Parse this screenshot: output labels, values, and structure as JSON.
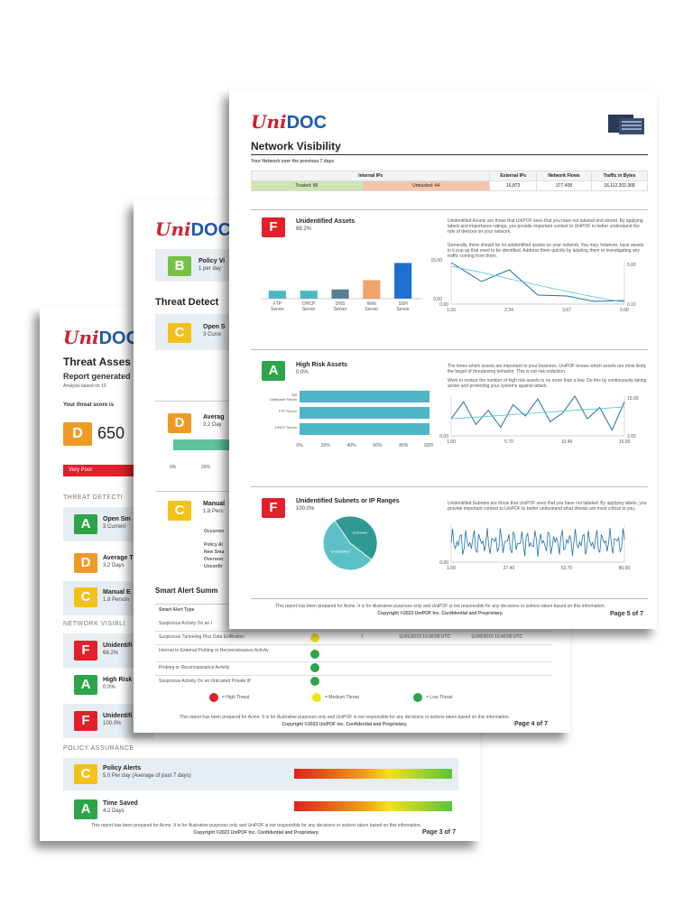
{
  "brand": {
    "logo_uni": "Uni",
    "logo_doc": "DOC"
  },
  "page3": {
    "title": "Threat Asses",
    "subtitle": "Report generated",
    "analysis": "Analysis based on 10",
    "score_label": "Your threat score is",
    "score_grade": "D",
    "score_value": "650",
    "score_rating": "Very Poor",
    "threat_section": "THREAT DETECTI",
    "threat_items": [
      {
        "grade": "A",
        "title": "Open Sm",
        "sub": "3 Current"
      },
      {
        "grade": "D",
        "title": "Average T",
        "sub": "3.2 Days"
      },
      {
        "grade": "C",
        "title": "Manual E",
        "sub": "1.8 Person"
      }
    ],
    "network_section": "NETWORK VISIBLI",
    "network_items": [
      {
        "grade": "F",
        "title": "Unidentifi",
        "sub": "68.2%"
      },
      {
        "grade": "A",
        "title": "High Risk",
        "sub": "0.0%"
      },
      {
        "grade": "F",
        "title": "Unidentifi",
        "sub": "100.0%"
      }
    ],
    "policy_section": "POLICY ASSURANCE",
    "policy_items": [
      {
        "grade": "C",
        "title": "Policy Alerts",
        "sub": "5.0 Per day (Average of past 7 days)"
      },
      {
        "grade": "A",
        "title": "Time Saved",
        "sub": "4.2 Days"
      }
    ],
    "footer": "This report has been prepared for Acme. It is for illustrative purposes only and UniPOF is not responsible for any decisions or actions taken based on this information.",
    "copyright": "Copyright ©2023 UniPOF Inc. Confidential and Proprietary.",
    "page": "Page 3 of 7"
  },
  "page4": {
    "policy_grade": "B",
    "policy_title": "Policy Vi",
    "policy_sub": "1 per day",
    "threat_title": "Threat Detect",
    "items": [
      {
        "grade": "C",
        "title": "Open S",
        "sub": "3 Curre"
      },
      {
        "grade": "D",
        "title": "Averag",
        "sub": "3.2 Day"
      },
      {
        "grade": "C",
        "title": "Manual",
        "sub": "1.8 Pers"
      }
    ],
    "axis_ticks": [
      "0%",
      "20%"
    ],
    "manual_lines": [
      "Occurren",
      "Policy Al",
      "New Sma",
      "Overseer",
      "Unconfir"
    ],
    "smart_title": "Smart Alert Summ",
    "table_header": "Smart Alert Type",
    "alerts": [
      {
        "type": "Suspicious Activity On an I",
        "count": "",
        "first": "",
        "last": ""
      },
      {
        "type": "Suspicious Tunneling Plus Data Exfiltration",
        "count": "1",
        "first": "11/01/2019 10:30:00 UTC",
        "last": "11/06/2019 10:40:00 UTC"
      },
      {
        "type": "Internal to External Probing or Reconnaissance Activity",
        "count": "",
        "first": "",
        "last": ""
      },
      {
        "type": "Probing or Reconnaissance Activity",
        "count": "",
        "first": "",
        "last": ""
      },
      {
        "type": "Suspicious Activity On an Untrusted Private IP",
        "count": "",
        "first": "",
        "last": ""
      }
    ],
    "legend": [
      "= High Threat",
      "= Medium Threat",
      "= Low Threat"
    ],
    "footer": "This report has been prepared for Acme. It is for illustrative purposes only and UniPOF is not responsible for any decisions or actions taken based on this information.",
    "copyright": "Copyright ©2023 UniPOF Inc. Confidential and Proprietary.",
    "page": "Page 4 of 7"
  },
  "page5": {
    "title": "Network Visibility",
    "subtitle": "Your Network over the previous 7 days",
    "table_headers": [
      "Internal IPs",
      "External IPs",
      "Network Flows",
      "Traffic in Bytes"
    ],
    "trusted": "Trusted: 86",
    "untrusted": "Untrusted: 44",
    "external_ips": "16,873",
    "network_flows": "377,408",
    "traffic": "16,112,202,368",
    "sections": [
      {
        "grade": "F",
        "title": "Unidentified Assets",
        "value": "68.2%",
        "desc1": "Unidentified Assets are those that UniPOF sees that you have not labeled and stored. By applying labels and importance ratings, you provide important context to UniPOF to better understand the role of devices on your network.",
        "desc2": "Generally, there should be no unidentified assets on your network. You may, however, have assets in it pop up that need to be identified. Address them quickly by labeling them or investigating any traffic coming from them."
      },
      {
        "grade": "A",
        "title": "High Risk Assets",
        "value": "0.0%",
        "desc1": "The times which assets are important to your business. UniPOF knows which assets are most likely the target of threatening behavior. This is not risk reduction.",
        "desc2": "Work to reduce the number of high risk assets to no more than a few. Do this by continuously taking action and protecting your systems against attack."
      },
      {
        "grade": "F",
        "title": "Unidentified Subnets or IP Ranges",
        "value": "100.0%",
        "desc1": "Unidentified Subnets are those that UniPOF sees that you have not labeled. By applying labels, you provide important context to UniPOF to better understand what threats are most critical to you.",
        "desc2": ""
      }
    ],
    "footer": "This report has been prepared for Acme. It is for illustrative purposes only and UniPOF is not responsible for any decisions or actions taken based on this information.",
    "copyright": "Copyright ©2023 UniPOF Inc. Confidential and Proprietary.",
    "page": "Page 5 of 7"
  },
  "chart_data": [
    {
      "type": "bar",
      "categories": [
        "FTP Server",
        "DHCP Server",
        "DNS Server",
        "Web Server",
        "SSH Server"
      ],
      "values": [
        3,
        3,
        3.5,
        7,
        13.5
      ],
      "colors": [
        "#4db6c6",
        "#4db6c6",
        "#5a7f92",
        "#f0a36b",
        "#1f6fd1"
      ],
      "ylim": [
        0,
        15
      ],
      "yticks": [
        "15.00",
        "0.00"
      ]
    },
    {
      "type": "line",
      "x": [
        1,
        1.7,
        2.34,
        3,
        3.67,
        4.3,
        5
      ],
      "series": [
        {
          "values": [
            4.6,
            2.5,
            3.8,
            1.0,
            0.9,
            0.3,
            0.4
          ]
        },
        {
          "values": [
            4.2,
            3.5,
            2.8,
            2.1,
            1.4,
            0.8,
            0.2
          ]
        }
      ],
      "xticks": [
        "1.00",
        "2.34",
        "3.67",
        "5.00"
      ],
      "yticks_left": [
        "0.00"
      ],
      "yticks_right": [
        "5.00",
        "0.10"
      ]
    },
    {
      "type": "bar",
      "orientation": "horizontal",
      "categories": [
        "DB, Database Server",
        "FTP Server",
        "DHCP Server"
      ],
      "values": [
        100,
        100,
        100
      ],
      "xticks": [
        "0%",
        "20%",
        "40%",
        "60%",
        "80%",
        "100%"
      ]
    },
    {
      "type": "line",
      "x": [
        1,
        2,
        3,
        4,
        5,
        6,
        7,
        8,
        9,
        10,
        11,
        12,
        13,
        14,
        15
      ],
      "series": [
        {
          "values": [
            6,
            12,
            4,
            9,
            3,
            11,
            7,
            13,
            5,
            8,
            14,
            6,
            10,
            2,
            12
          ]
        },
        {
          "values": [
            6,
            6.3,
            6.6,
            6.9,
            7.2,
            7.5,
            7.8,
            8.1,
            8.4,
            8.7,
            9,
            9.3,
            9.6,
            9.9,
            10.2
          ]
        }
      ],
      "xticks": [
        "1.00",
        "5.70",
        "10.40",
        "15.00"
      ],
      "yticks_left": [
        "0.00"
      ],
      "yticks_right": [
        "15.00",
        "2.00"
      ]
    },
    {
      "type": "pie",
      "categories": [
        "Unknown",
        "Unidentified"
      ],
      "values": [
        45,
        55
      ],
      "colors": [
        "#2f9a94",
        "#5cc0c8"
      ]
    },
    {
      "type": "line",
      "x_range": [
        1,
        90
      ],
      "xticks": [
        "1.00",
        "27.40",
        "53.70",
        "80.00"
      ],
      "yticks_left": [
        "0.00"
      ]
    }
  ]
}
